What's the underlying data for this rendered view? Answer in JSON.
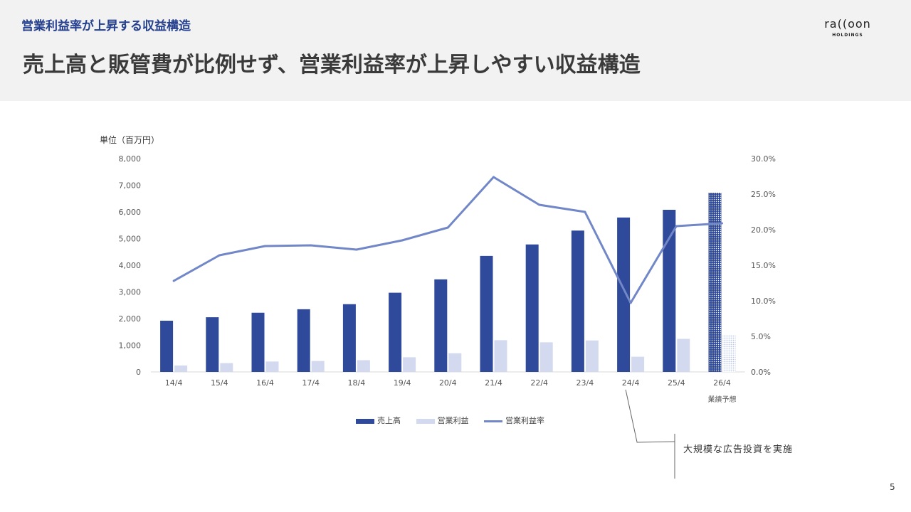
{
  "header": {
    "section_title": "営業利益率が上昇する収益構造",
    "page_title": "売上高と販管費が比例せず、営業利益率が上昇しやすい収益構造"
  },
  "logo": {
    "main": "ra((oon",
    "sub": "HOLDINGS"
  },
  "chart_data": {
    "type": "bar",
    "unit_label": "単位（百万円）",
    "categories": [
      "14/4",
      "15/4",
      "16/4",
      "17/4",
      "18/4",
      "19/4",
      "20/4",
      "21/4",
      "22/4",
      "23/4",
      "24/4",
      "25/4",
      "26/4"
    ],
    "forecast_label": "業績予想",
    "forecast_category": "26/4",
    "series": [
      {
        "name": "売上高",
        "type": "bar",
        "axis": "left",
        "color": "#2f4a9a",
        "values": [
          1920,
          2050,
          2220,
          2350,
          2540,
          2970,
          3470,
          4350,
          4780,
          5300,
          5790,
          6080,
          6720
        ]
      },
      {
        "name": "営業利益",
        "type": "bar",
        "axis": "left",
        "color": "#d3daf0",
        "values": [
          240,
          330,
          390,
          410,
          440,
          550,
          700,
          1190,
          1110,
          1180,
          570,
          1240,
          1400
        ]
      },
      {
        "name": "営業利益率",
        "type": "line",
        "axis": "right",
        "color": "#7187c7",
        "values": [
          12.8,
          16.4,
          17.7,
          17.8,
          17.2,
          18.5,
          20.3,
          27.4,
          23.5,
          22.5,
          9.7,
          20.5,
          20.9
        ]
      }
    ],
    "y_left": {
      "min": 0,
      "max": 8000,
      "ticks": [
        "0",
        "1,000",
        "2,000",
        "3,000",
        "4,000",
        "5,000",
        "6,000",
        "7,000",
        "8,000"
      ]
    },
    "y_right": {
      "min": 0,
      "max": 30,
      "ticks": [
        "0.0%",
        "5.0%",
        "10.0%",
        "15.0%",
        "20.0%",
        "25.0%",
        "30.0%"
      ]
    },
    "legend_position": "bottom",
    "annotation": "大規模な広告投資を実施",
    "annotation_category": "24/4"
  },
  "footer": {
    "page_number": "5"
  }
}
